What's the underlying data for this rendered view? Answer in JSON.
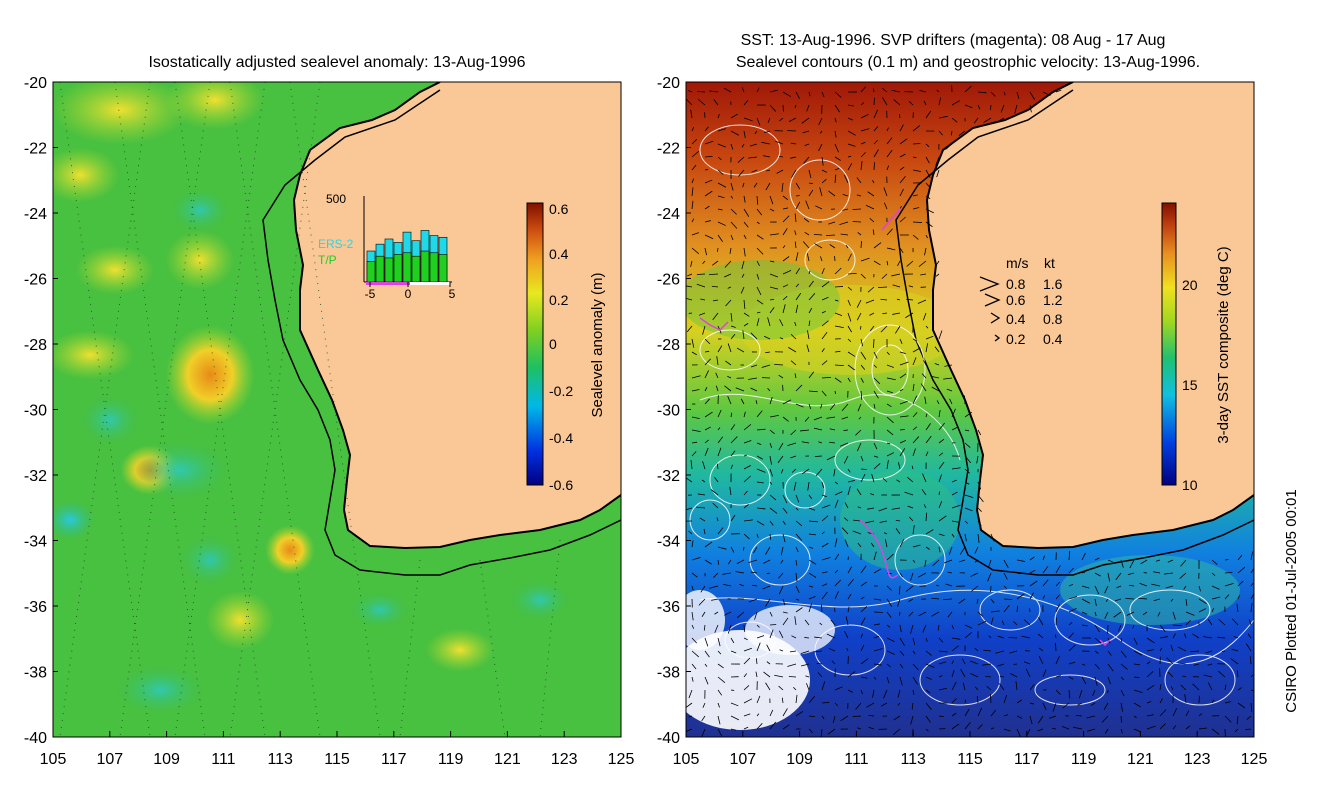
{
  "left_panel": {
    "title": "Isostatically adjusted sealevel anomaly: 13-Aug-1996",
    "colorbar": {
      "label": "Sealevel anomaly (m)",
      "ticks": [
        "0.6",
        "0.4",
        "0.2",
        "0",
        "-0.2",
        "-0.4",
        "-0.6"
      ],
      "range": [
        -0.6,
        0.6
      ]
    },
    "inset": {
      "y_max_label": "500",
      "x_ticks": [
        "-5",
        "0",
        "5"
      ],
      "legend": [
        {
          "label": "ERS-2",
          "color": "#20d8e8"
        },
        {
          "label": "T/P",
          "color": "#20d020"
        }
      ],
      "ers2_counts": [
        180,
        220,
        250,
        230,
        290,
        240,
        300,
        270,
        260
      ],
      "tp_counts": [
        120,
        150,
        140,
        160,
        170,
        150,
        180,
        170,
        160
      ]
    }
  },
  "right_panel": {
    "title_line1": "SST: 13-Aug-1996. SVP drifters (magenta): 08 Aug - 17 Aug",
    "title_line2": "Sealevel contours (0.1 m) and geostrophic velocity: 13-Aug-1996.",
    "colorbar": {
      "label": "3-day SST composite (deg C)",
      "ticks": [
        "20",
        "15",
        "10"
      ],
      "range": [
        10,
        24
      ]
    },
    "velocity_legend": {
      "header_ms": "m/s",
      "header_kt": "kt",
      "rows": [
        {
          "ms": "0.8",
          "kt": "1.6"
        },
        {
          "ms": "0.6",
          "kt": "1.2"
        },
        {
          "ms": "0.4",
          "kt": "0.8"
        },
        {
          "ms": "0.2",
          "kt": "0.4"
        }
      ]
    }
  },
  "axes": {
    "lat_labels": [
      "-20",
      "-22",
      "-24",
      "-26",
      "-28",
      "-30",
      "-32",
      "-34",
      "-36",
      "-38",
      "-40"
    ],
    "lon_labels": [
      "105",
      "107",
      "109",
      "111",
      "113",
      "115",
      "117",
      "119",
      "121",
      "123",
      "125"
    ]
  },
  "credit": "CSIRO Plotted 01-Jul-2005 00:01",
  "colors": {
    "land": "#fac796",
    "ocean_left": "#38c048",
    "coast": "#000000",
    "drifters": "#e040e0"
  }
}
